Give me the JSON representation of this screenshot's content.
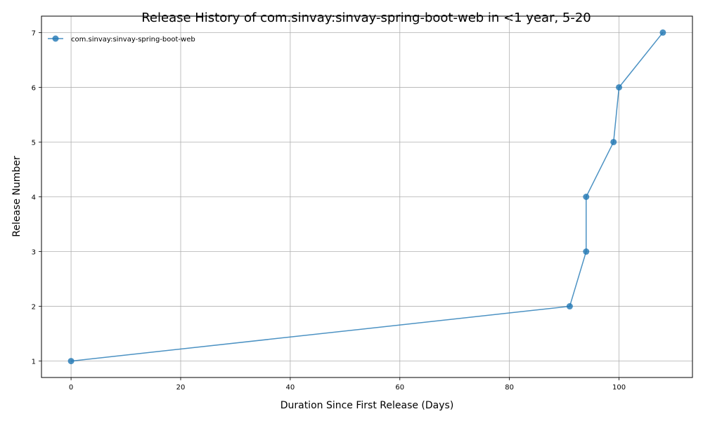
{
  "chart_data": {
    "type": "line",
    "title": "Release History of com.sinvay:sinvay-spring-boot-web in <1 year, 5-20",
    "xlabel": "Duration Since First Release (Days)",
    "ylabel": "Release Number",
    "xlim": [
      -5.4,
      113.4
    ],
    "ylim": [
      0.7,
      7.3
    ],
    "xticks": [
      0,
      20,
      40,
      60,
      80,
      100
    ],
    "yticks": [
      1,
      2,
      3,
      4,
      5,
      6,
      7
    ],
    "grid": true,
    "legend_position": "top-left",
    "series": [
      {
        "name": "com.sinvay:sinvay-spring-boot-web",
        "color": "#1f77b4",
        "marker": "circle",
        "x": [
          0,
          91,
          94,
          94,
          99,
          100,
          108
        ],
        "y": [
          1,
          2,
          3,
          4,
          5,
          6,
          7
        ]
      }
    ]
  }
}
